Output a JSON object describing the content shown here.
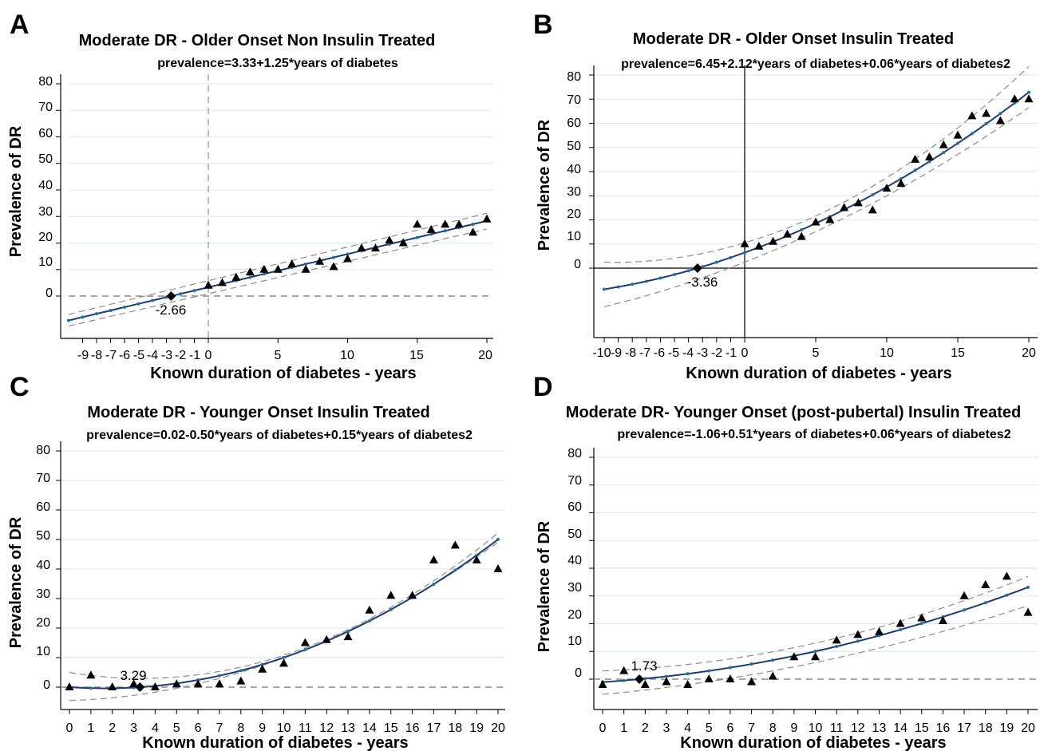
{
  "colors": {
    "fit": "#1f3c6b",
    "ci": "#8c8c8c",
    "grid": "#d5eaea",
    "points": "#000000"
  },
  "chart_data": [
    {
      "panel_label": "A",
      "type": "scatter",
      "title": "Moderate DR - Older Onset Non Insulin Treated",
      "subtitle": "prevalence=3.33+1.25*years of diabetes",
      "xlabel": "Known duration of diabetes - years",
      "ylabel": "Prevalence of DR",
      "xlim": [
        -10,
        20
      ],
      "ylim": [
        -10,
        80
      ],
      "x_tick_labels": [
        "-9",
        "-8",
        "-7",
        "-6",
        "-5",
        "-4",
        "-3",
        "-2",
        "-1",
        "0",
        "5",
        "10",
        "15",
        "20"
      ],
      "y_tick_labels": [
        "0",
        "10",
        "20",
        "30",
        "40",
        "50",
        "60",
        "70",
        "80"
      ],
      "grid": "horizontal",
      "equation": {
        "a": 3.33,
        "b": 1.25,
        "c": 0
      },
      "ci_equations": {
        "upper": {
          "a": 5.8,
          "b": 1.27,
          "c": 0
        },
        "lower": {
          "a": 0.9,
          "b": 1.22,
          "c": 0
        }
      },
      "fit_x_range": [
        -10,
        20
      ],
      "zero_reference": "dashed-horizontal",
      "vertical_reference": "dashed",
      "intercept_marker": {
        "x": -2.66,
        "y": 0
      },
      "intercept_label": "-2.66",
      "observed": {
        "x": [
          0,
          1,
          2,
          3,
          4,
          5,
          6,
          7,
          8,
          9,
          10,
          11,
          12,
          13,
          14,
          15,
          16,
          17,
          18,
          19,
          20
        ],
        "y": [
          4,
          5,
          7,
          9,
          10,
          10,
          12,
          10,
          13,
          11,
          14,
          18,
          18,
          21,
          20,
          27,
          25,
          27,
          27,
          24,
          29
        ]
      }
    },
    {
      "panel_label": "B",
      "type": "scatter",
      "title": "Moderate DR - Older Onset Insulin Treated",
      "subtitle": "prevalence=6.45+2.12*years of diabetes+0.06*years of diabetes2",
      "xlabel": "Known duration of diabetes - years",
      "ylabel": "Prevalence of DR",
      "xlim": [
        -10.5,
        20.2
      ],
      "ylim": [
        -30,
        85
      ],
      "x_tick_labels": [
        "-10",
        "-9",
        "-8",
        "-7",
        "-6",
        "-5",
        "-4",
        "-3",
        "-2",
        "-1",
        "0",
        "5",
        "10",
        "15",
        "20"
      ],
      "y_tick_labels": [
        "0",
        "10",
        "20",
        "30",
        "40",
        "50",
        "60",
        "70",
        "80"
      ],
      "grid": "horizontal",
      "equation": {
        "a": 6.45,
        "b": 2.12,
        "c": 0.06
      },
      "ci_equations": {
        "upper": {
          "a": 10.5,
          "b": 1.75,
          "c": 0.095
        },
        "lower": {
          "a": 2.5,
          "b": 2.3,
          "c": 0.045
        }
      },
      "fit_x_range": [
        -10,
        20
      ],
      "zero_reference": "solid-horizontal",
      "vertical_reference": "solid",
      "intercept_marker": {
        "x": -3.36,
        "y": 0
      },
      "intercept_label": "-3.36",
      "observed": {
        "x": [
          0,
          1,
          2,
          3,
          4,
          5,
          6,
          7,
          8,
          9,
          10,
          11,
          12,
          13,
          14,
          15,
          16,
          17,
          18,
          19,
          20
        ],
        "y": [
          10,
          9,
          11,
          14,
          13,
          19,
          20,
          25,
          27,
          24,
          33,
          35,
          45,
          46,
          51,
          55,
          63,
          64,
          61,
          70,
          70
        ]
      }
    },
    {
      "panel_label": "C",
      "type": "scatter",
      "title": "Moderate DR - Younger Onset Insulin Treated",
      "subtitle": "prevalence=0.02-0.50*years of diabetes+0.15*years of diabetes2",
      "xlabel": "Known duration of diabetes - years",
      "ylabel": "Prevalence of DR",
      "xlim": [
        -0.6,
        20.5
      ],
      "ylim": [
        -5,
        82
      ],
      "x_tick_labels": [
        "0",
        "1",
        "2",
        "3",
        "4",
        "5",
        "6",
        "7",
        "8",
        "9",
        "10",
        "11",
        "12",
        "13",
        "14",
        "15",
        "16",
        "17",
        "18",
        "19",
        "20"
      ],
      "y_tick_labels": [
        "0",
        "10",
        "20",
        "30",
        "40",
        "50",
        "60",
        "70",
        "80"
      ],
      "grid": "horizontal",
      "equation": {
        "a": 0.02,
        "b": -0.5,
        "c": 0.15
      },
      "ci_equations": {
        "upper": {
          "a": 5,
          "b": -1.2,
          "c": 0.178
        },
        "lower": {
          "a": -4.5,
          "b": 0.2,
          "c": 0.124
        }
      },
      "fit_x_range": [
        0,
        20
      ],
      "zero_reference": "dashed-horizontal",
      "vertical_reference": "",
      "intercept_marker": {
        "x": 3.29,
        "y": 0
      },
      "intercept_label": "3.29",
      "observed": {
        "x": [
          0,
          1,
          2,
          3,
          4,
          5,
          6,
          7,
          8,
          9,
          10,
          11,
          12,
          13,
          14,
          15,
          16,
          17,
          18,
          19,
          20
        ],
        "y": [
          0,
          4,
          0,
          1,
          0,
          1,
          1,
          1,
          2,
          6,
          8,
          15,
          16,
          17,
          26,
          31,
          31,
          43,
          48,
          43,
          40
        ]
      }
    },
    {
      "panel_label": "D",
      "type": "scatter",
      "title": "Moderate DR- Younger Onset (post-pubertal) Insulin Treated",
      "subtitle": "prevalence=-1.06+0.51*years of diabetes+0.06*years of diabetes2",
      "xlabel": "Known duration of diabetes - years",
      "ylabel": "Prevalence of DR",
      "xlim": [
        -0.6,
        20.5
      ],
      "ylim": [
        -10,
        82
      ],
      "x_tick_labels": [
        "0",
        "1",
        "2",
        "3",
        "4",
        "5",
        "6",
        "7",
        "8",
        "9",
        "10",
        "11",
        "12",
        "13",
        "14",
        "15",
        "16",
        "17",
        "18",
        "19",
        "20"
      ],
      "y_tick_labels": [
        "0",
        "10",
        "20",
        "30",
        "40",
        "50",
        "60",
        "70",
        "80"
      ],
      "grid": "horizontal",
      "equation": {
        "a": -1.06,
        "b": 0.51,
        "c": 0.06
      },
      "ci_equations": {
        "upper": {
          "a": 3,
          "b": 0.3,
          "c": 0.07
        },
        "lower": {
          "a": -5.5,
          "b": 0.7,
          "c": 0.045
        }
      },
      "fit_x_range": [
        0,
        20
      ],
      "zero_reference": "dashed-horizontal",
      "vertical_reference": "",
      "intercept_marker": {
        "x": 1.73,
        "y": 0
      },
      "intercept_label": "1.73",
      "observed": {
        "x": [
          0,
          1,
          2,
          3,
          4,
          5,
          6,
          7,
          8,
          9,
          10,
          11,
          12,
          13,
          14,
          15,
          16,
          17,
          18,
          19,
          20
        ],
        "y": [
          -2,
          3,
          -2,
          -1,
          -2,
          0,
          0,
          -1,
          1,
          8,
          8,
          14,
          16,
          17,
          20,
          22,
          21,
          30,
          34,
          37,
          24
        ]
      }
    }
  ]
}
